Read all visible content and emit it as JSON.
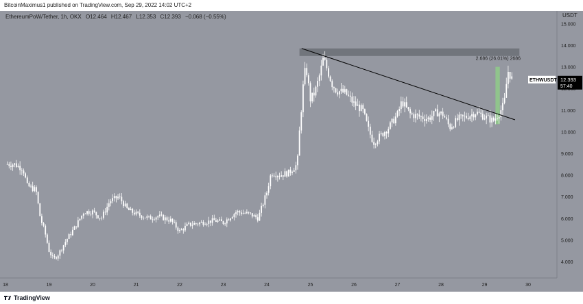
{
  "header": {
    "publisher_text": "BitcoinMaximus1 published on TradingView.com, Sep 29, 2022 14:02 UTC+2"
  },
  "symbol_info": {
    "title": "EthereumPoW/Tether, 1h, OKX",
    "open": "O12.464",
    "high": "H12.467",
    "low": "L12.353",
    "close": "C12.393",
    "change": "−0.068 (−0.55%)"
  },
  "price_axis": {
    "currency": "USDT"
  },
  "footer": {
    "brand": "TradingView"
  },
  "colors": {
    "background": "#9598a1",
    "candle": "#ffffff",
    "trendline": "#000000",
    "resistance_zone": "#6b6e76",
    "measure_zone": "#8fc98a",
    "price_tag": "#000000"
  },
  "chart_data": {
    "type": "candlestick",
    "title": "EthereumPoW/Tether, 1h, OKX",
    "ylabel": "USDT",
    "ylim": [
      3.0,
      15.0
    ],
    "xlim": [
      18.0,
      30.4
    ],
    "y_ticks": [
      "4.000",
      "5.000",
      "6.000",
      "7.000",
      "8.000",
      "9.000",
      "10.000",
      "11.000",
      "12.000",
      "13.000",
      "14.000",
      "15.000"
    ],
    "x_ticks": [
      "18",
      "19",
      "20",
      "21",
      "22",
      "23",
      "24",
      "25",
      "26",
      "27",
      "28",
      "29",
      "30"
    ],
    "price_path": [
      [
        18.0,
        8.5
      ],
      [
        18.2,
        8.5
      ],
      [
        18.4,
        8.3
      ],
      [
        18.5,
        7.5
      ],
      [
        18.7,
        7.3
      ],
      [
        18.8,
        6.0
      ],
      [
        18.9,
        5.4
      ],
      [
        19.0,
        4.5
      ],
      [
        19.1,
        4.1
      ],
      [
        19.2,
        4.3
      ],
      [
        19.4,
        5.0
      ],
      [
        19.6,
        5.6
      ],
      [
        19.8,
        6.3
      ],
      [
        20.0,
        6.3
      ],
      [
        20.2,
        6.0
      ],
      [
        20.4,
        6.8
      ],
      [
        20.6,
        7.0
      ],
      [
        20.8,
        6.4
      ],
      [
        21.0,
        6.2
      ],
      [
        21.3,
        6.0
      ],
      [
        21.5,
        6.1
      ],
      [
        21.8,
        5.9
      ],
      [
        22.0,
        5.4
      ],
      [
        22.2,
        5.7
      ],
      [
        22.5,
        5.8
      ],
      [
        22.8,
        5.9
      ],
      [
        23.0,
        5.8
      ],
      [
        23.3,
        6.3
      ],
      [
        23.6,
        6.2
      ],
      [
        23.8,
        6.0
      ],
      [
        24.0,
        7.2
      ],
      [
        24.1,
        8.1
      ],
      [
        24.3,
        8.0
      ],
      [
        24.5,
        8.1
      ],
      [
        24.7,
        8.5
      ],
      [
        24.75,
        10.0
      ],
      [
        24.85,
        12.5
      ],
      [
        24.9,
        13.0
      ],
      [
        25.0,
        11.5
      ],
      [
        25.1,
        11.8
      ],
      [
        25.2,
        12.5
      ],
      [
        25.3,
        13.4
      ],
      [
        25.4,
        12.8
      ],
      [
        25.5,
        12.2
      ],
      [
        25.6,
        11.9
      ],
      [
        25.8,
        11.8
      ],
      [
        26.0,
        11.3
      ],
      [
        26.2,
        11.0
      ],
      [
        26.35,
        10.0
      ],
      [
        26.45,
        9.5
      ],
      [
        26.6,
        9.8
      ],
      [
        26.8,
        10.2
      ],
      [
        27.0,
        10.8
      ],
      [
        27.1,
        11.4
      ],
      [
        27.3,
        10.8
      ],
      [
        27.5,
        10.7
      ],
      [
        27.7,
        10.6
      ],
      [
        27.9,
        10.9
      ],
      [
        28.05,
        10.8
      ],
      [
        28.2,
        10.2
      ],
      [
        28.4,
        10.6
      ],
      [
        28.6,
        10.7
      ],
      [
        28.8,
        10.9
      ],
      [
        29.0,
        10.7
      ],
      [
        29.1,
        10.6
      ],
      [
        29.2,
        10.5
      ],
      [
        29.35,
        10.9
      ],
      [
        29.45,
        11.3
      ],
      [
        29.5,
        12.2
      ],
      [
        29.55,
        12.9
      ],
      [
        29.6,
        12.5
      ],
      [
        29.65,
        12.393
      ]
    ],
    "last_price": {
      "symbol": "ETHWUSDT",
      "value": "12.393",
      "countdown": "57:40"
    },
    "trendline": {
      "from": [
        24.8,
        13.85
      ],
      "to": [
        29.7,
        10.55
      ]
    },
    "resistance_zone": {
      "x": [
        24.75,
        29.8
      ],
      "y": [
        13.5,
        13.85
      ]
    },
    "measure": {
      "x": [
        29.25,
        29.35
      ],
      "y": [
        10.35,
        13.0
      ],
      "label": "2.686 (26.01%) 2686"
    }
  }
}
